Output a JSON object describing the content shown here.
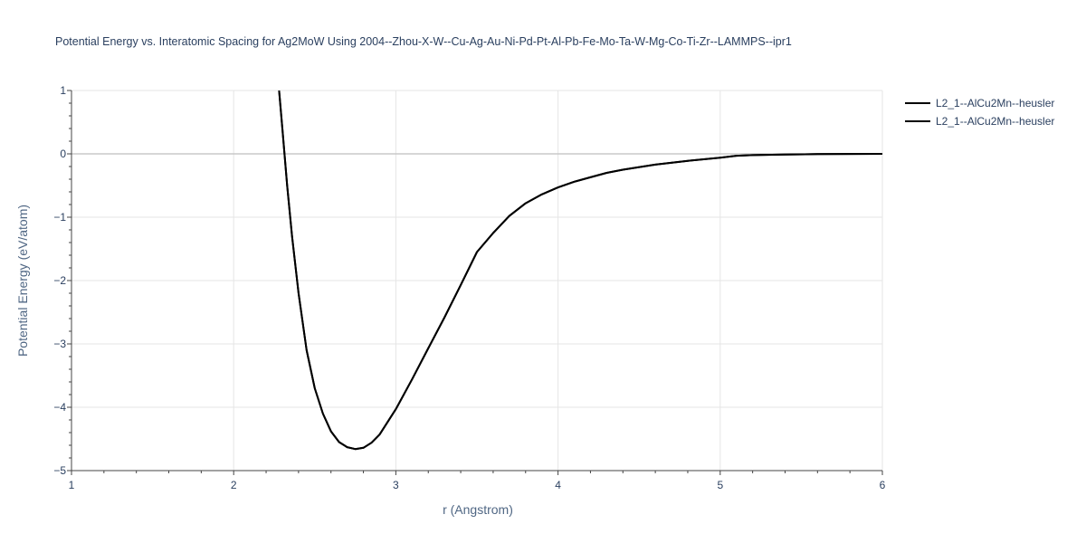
{
  "chart_data": {
    "type": "line",
    "title": "Potential Energy vs. Interatomic Spacing for Ag2MoW Using 2004--Zhou-X-W--Cu-Ag-Au-Ni-Pd-Pt-Al-Pb-Fe-Mo-Ta-W-Mg-Co-Ti-Zr--LAMMPS--ipr1",
    "xlabel": "r (Angstrom)",
    "ylabel": "Potential Energy (eV/atom)",
    "xlim": [
      1,
      6
    ],
    "ylim": [
      -5,
      1
    ],
    "x_ticks": [
      "1",
      "2",
      "3",
      "4",
      "5",
      "6"
    ],
    "y_ticks": [
      "1",
      "0",
      "−1",
      "−2",
      "−3",
      "−4",
      "−5"
    ],
    "grid": true,
    "legend_position": "top-right",
    "series": [
      {
        "name": "L2_1--AlCu2Mn--heusler",
        "color": "#000000",
        "x": [
          2.28,
          2.3,
          2.33,
          2.36,
          2.4,
          2.45,
          2.5,
          2.55,
          2.6,
          2.65,
          2.7,
          2.75,
          2.8,
          2.85,
          2.9,
          3.0,
          3.1,
          3.2,
          3.3,
          3.4,
          3.5,
          3.6,
          3.7,
          3.8,
          3.9,
          4.0,
          4.1,
          4.2,
          4.3,
          4.4,
          4.6,
          4.8,
          5.0,
          5.1,
          5.2,
          5.4,
          5.6,
          6.0
        ],
        "y": [
          1.0,
          0.4,
          -0.5,
          -1.3,
          -2.2,
          -3.1,
          -3.7,
          -4.1,
          -4.38,
          -4.55,
          -4.63,
          -4.66,
          -4.64,
          -4.56,
          -4.43,
          -4.03,
          -3.56,
          -3.07,
          -2.58,
          -2.07,
          -1.55,
          -1.25,
          -0.98,
          -0.78,
          -0.64,
          -0.53,
          -0.44,
          -0.37,
          -0.3,
          -0.25,
          -0.17,
          -0.11,
          -0.06,
          -0.03,
          -0.02,
          -0.01,
          -0.005,
          0.0
        ]
      },
      {
        "name": "L2_1--AlCu2Mn--heusler",
        "color": "#000000",
        "x": [
          2.28,
          2.3,
          2.33,
          2.36,
          2.4,
          2.45,
          2.5,
          2.55,
          2.6,
          2.65,
          2.7,
          2.75,
          2.8,
          2.85,
          2.9,
          3.0,
          3.1,
          3.2,
          3.3,
          3.4,
          3.5,
          3.6,
          3.7,
          3.8,
          3.9,
          4.0,
          4.1,
          4.2,
          4.3,
          4.4,
          4.6,
          4.8,
          5.0,
          5.1,
          5.2,
          5.4,
          5.6,
          6.0
        ],
        "y": [
          1.0,
          0.4,
          -0.5,
          -1.3,
          -2.2,
          -3.1,
          -3.7,
          -4.1,
          -4.38,
          -4.55,
          -4.63,
          -4.66,
          -4.64,
          -4.56,
          -4.43,
          -4.03,
          -3.56,
          -3.07,
          -2.58,
          -2.07,
          -1.55,
          -1.25,
          -0.98,
          -0.78,
          -0.64,
          -0.53,
          -0.44,
          -0.37,
          -0.3,
          -0.25,
          -0.17,
          -0.11,
          -0.06,
          -0.03,
          -0.02,
          -0.01,
          -0.005,
          0.0
        ]
      }
    ]
  }
}
